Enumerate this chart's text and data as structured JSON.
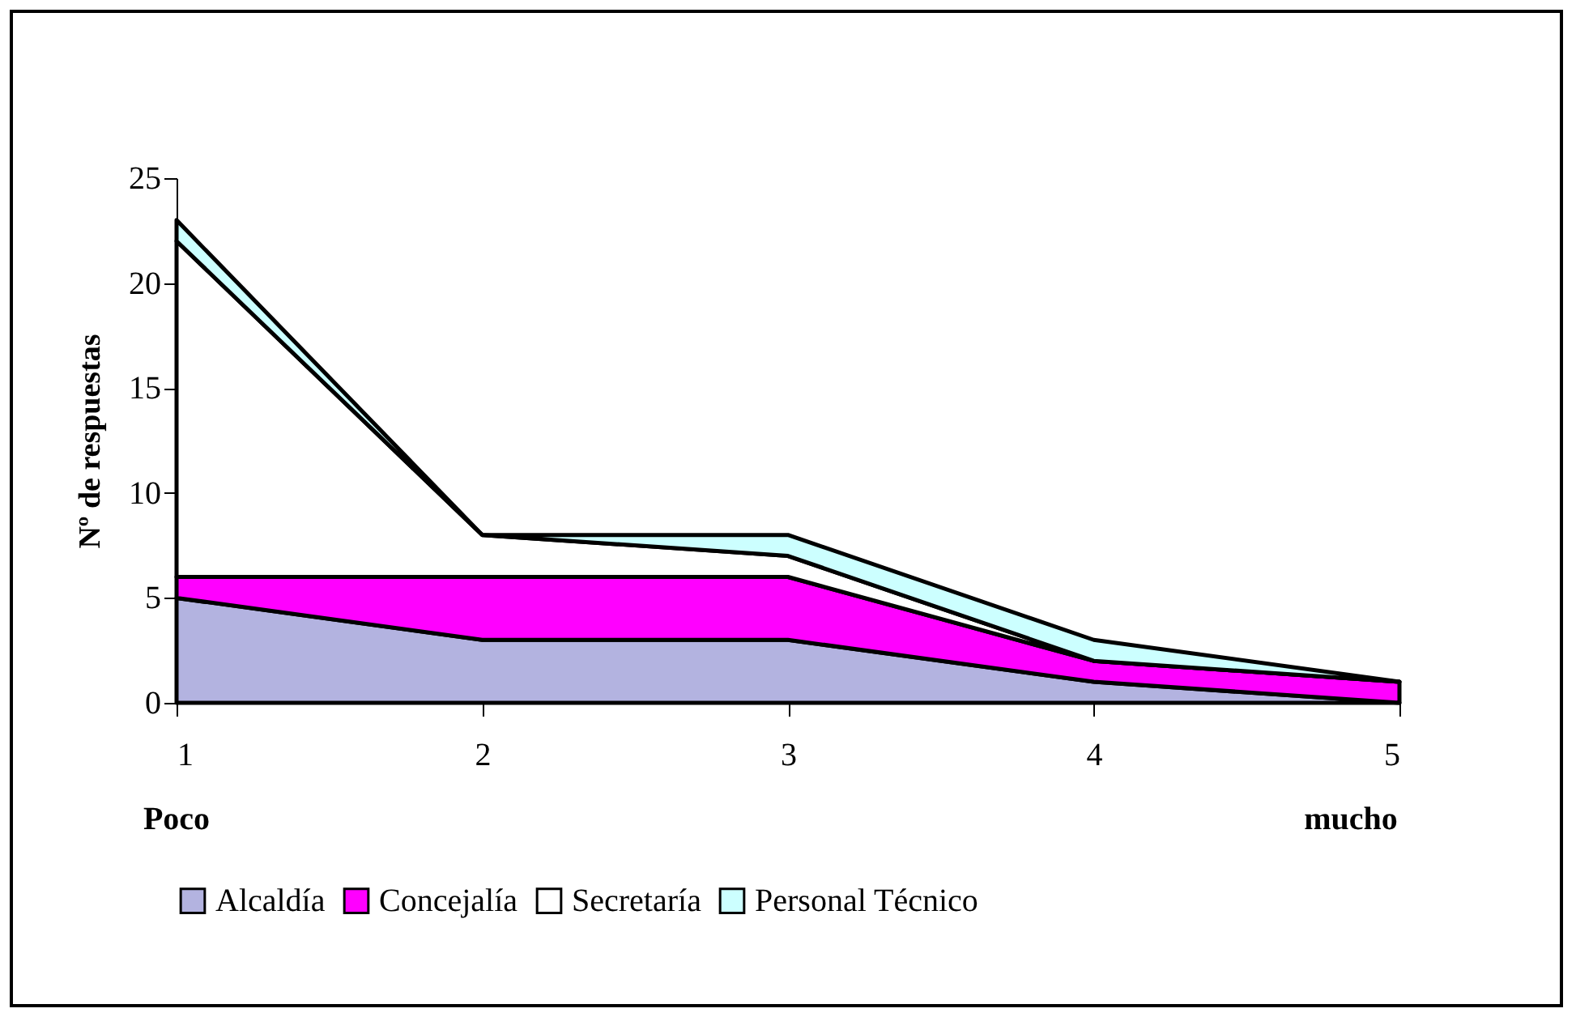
{
  "chart_data": {
    "type": "area",
    "stacked": true,
    "ylabel": "Nº de respuestas",
    "x": [
      1,
      2,
      3,
      4,
      5
    ],
    "xlim": [
      1,
      5
    ],
    "xticks": [
      1,
      2,
      3,
      4,
      5
    ],
    "ylim": [
      0,
      25
    ],
    "yticks": [
      0,
      5,
      10,
      15,
      20,
      25
    ],
    "grid": false,
    "legend": "bottom",
    "annotations": [
      "Poco",
      "mucho"
    ],
    "series": [
      {
        "name": "Alcaldía",
        "color": "#b3b3e0",
        "values": [
          5,
          3,
          3,
          1,
          0
        ]
      },
      {
        "name": "Concejalía",
        "color": "#ff00ff",
        "values": [
          1,
          3,
          3,
          1,
          1
        ]
      },
      {
        "name": "Secretaría",
        "color": "#ffffff",
        "values": [
          16,
          2,
          1,
          0,
          0
        ]
      },
      {
        "name": "Personal Técnico",
        "color": "#ccffff",
        "values": [
          1,
          0,
          1,
          1,
          0
        ]
      }
    ]
  }
}
